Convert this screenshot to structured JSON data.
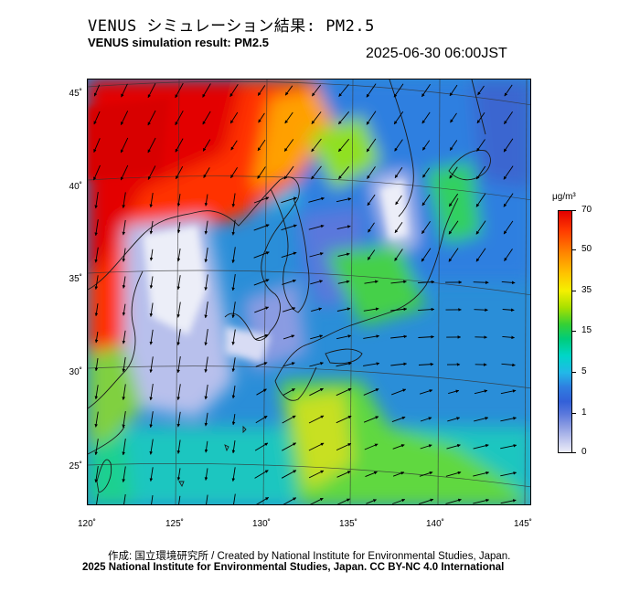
{
  "header": {
    "title_jp": "VENUS シミュレーション結果: PM2.5",
    "title_en": "VENUS simulation result: PM2.5",
    "timestamp": "2025-06-30 06:00JST"
  },
  "map": {
    "lat_ticks": [
      {
        "label": "45˚",
        "value": 45
      },
      {
        "label": "40˚",
        "value": 40
      },
      {
        "label": "35˚",
        "value": 35
      },
      {
        "label": "30˚",
        "value": 30
      },
      {
        "label": "25˚",
        "value": 25
      }
    ],
    "lon_ticks": [
      {
        "label": "120˚",
        "value": 120
      },
      {
        "label": "125˚",
        "value": 125
      },
      {
        "label": "130˚",
        "value": 130
      },
      {
        "label": "135˚",
        "value": 135
      },
      {
        "label": "140˚",
        "value": 140
      },
      {
        "label": "145˚",
        "value": 145
      }
    ],
    "colors": {
      "sea_base": "#2a8ed8",
      "land_outline": "#222222",
      "grid": "#333333",
      "arrow": "#000000"
    }
  },
  "colorbar": {
    "unit": "μg/m³",
    "ticks": [
      {
        "label": "70",
        "value": 70
      },
      {
        "label": "50",
        "value": 50
      },
      {
        "label": "35",
        "value": 35
      },
      {
        "label": "15",
        "value": 15
      },
      {
        "label": "5",
        "value": 5
      },
      {
        "label": "1",
        "value": 1
      },
      {
        "label": "0",
        "value": 0
      }
    ]
  },
  "footer": {
    "credit_line": "作成: 国立環境研究所 / Created by National Institute for Environmental Studies, Japan.",
    "copyright_line": "2025 National Institute for Environmental Studies, Japan. CC BY-NC 4.0 International"
  }
}
